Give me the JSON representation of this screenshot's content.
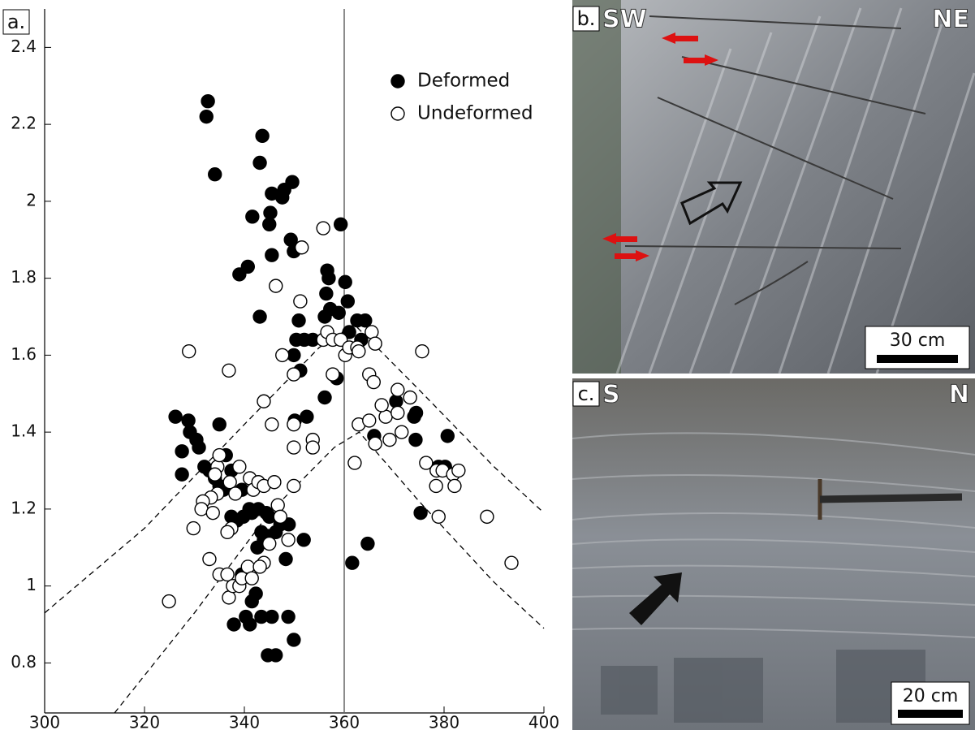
{
  "chart_data": {
    "type": "scatter",
    "panel_label": "a.",
    "xlim": [
      300,
      400
    ],
    "ylim": [
      0.67,
      2.5
    ],
    "xticks": [
      300,
      320,
      340,
      360,
      380,
      400
    ],
    "yticks": [
      0.8,
      1,
      1.2,
      1.4,
      1.6,
      1.8,
      2,
      2.2,
      2.4
    ],
    "reference_x": 360,
    "envelopes": [
      {
        "x": [
          300,
          320,
          340,
          355,
          362,
          375,
          390,
          400
        ],
        "y": [
          0.93,
          1.15,
          1.42,
          1.62,
          1.68,
          1.51,
          1.31,
          1.19
        ]
      },
      {
        "x": [
          314,
          330,
          345,
          358,
          363,
          375,
          390,
          400
        ],
        "y": [
          0.67,
          0.93,
          1.19,
          1.36,
          1.4,
          1.22,
          1.01,
          0.89
        ]
      }
    ],
    "series": [
      {
        "name": "Deformed",
        "color": "#000000",
        "filled": true,
        "x": [
          332.7,
          332.4,
          334.1,
          343.6,
          343.1,
          341.6,
          345.5,
          347.6,
          348.0,
          349.6,
          345.2,
          345.0,
          349.3,
          349.9,
          345.5,
          340.7,
          339.0,
          343.1,
          359.3,
          356.6,
          356.9,
          356.4,
          360.2,
          360.7,
          357.2,
          358.9,
          356.1,
          350.9,
          353.7,
          352.0,
          350.4,
          349.9,
          362.6,
          364.2,
          363.4,
          361.0,
          358.5,
          356.1,
          351.2,
          352.5,
          350.1,
          326.2,
          328.8,
          329.1,
          330.4,
          330.9,
          327.5,
          327.5,
          335.0,
          336.3,
          332.0,
          333.0,
          334.1,
          335.0,
          335.8,
          337.4,
          339.5,
          341.0,
          339.8,
          338.5,
          337.4,
          341.5,
          342.8,
          344.4,
          345.0,
          343.4,
          344.7,
          343.9,
          346.3,
          347.2,
          348.9,
          351.9,
          342.6,
          348.3,
          339.5,
          342.3,
          341.5,
          340.3,
          341.1,
          343.4,
          345.5,
          348.8,
          349.9,
          344.7,
          346.3,
          337.9,
          361.6,
          364.7,
          366.0,
          370.4,
          374.0,
          374.3,
          375.3,
          380.7,
          378.9,
          380.2,
          374.4
        ],
        "values": [
          2.26,
          2.22,
          2.07,
          2.17,
          2.1,
          1.96,
          2.02,
          2.01,
          2.03,
          2.05,
          1.97,
          1.94,
          1.9,
          1.87,
          1.86,
          1.83,
          1.81,
          1.7,
          1.94,
          1.82,
          1.8,
          1.76,
          1.79,
          1.74,
          1.72,
          1.71,
          1.7,
          1.69,
          1.64,
          1.64,
          1.64,
          1.6,
          1.69,
          1.69,
          1.64,
          1.66,
          1.54,
          1.49,
          1.56,
          1.44,
          1.43,
          1.44,
          1.43,
          1.4,
          1.38,
          1.36,
          1.35,
          1.29,
          1.42,
          1.34,
          1.31,
          1.3,
          1.28,
          1.26,
          1.25,
          1.3,
          1.25,
          1.2,
          1.18,
          1.17,
          1.18,
          1.19,
          1.2,
          1.19,
          1.18,
          1.14,
          1.13,
          1.12,
          1.14,
          1.16,
          1.16,
          1.12,
          1.1,
          1.07,
          1.03,
          0.98,
          0.96,
          0.92,
          0.9,
          0.92,
          0.92,
          0.92,
          0.86,
          0.82,
          0.82,
          0.9,
          1.06,
          1.11,
          1.39,
          1.48,
          1.44,
          1.38,
          1.19,
          1.39,
          1.31,
          1.31,
          1.45
        ]
      },
      {
        "name": "Undeformed",
        "color": "#000000",
        "filled": false,
        "x": [
          328.9,
          336.9,
          324.9,
          329.8,
          333.0,
          335.0,
          336.9,
          336.6,
          337.7,
          339.0,
          339.5,
          340.7,
          341.5,
          337.4,
          336.6,
          334.6,
          333.3,
          331.7,
          331.4,
          333.7,
          334.6,
          335.0,
          334.1,
          337.1,
          338.2,
          339.0,
          341.1,
          341.8,
          342.8,
          343.9,
          346.0,
          346.7,
          345.0,
          343.9,
          343.1,
          347.2,
          348.8,
          349.9,
          349.9,
          345.5,
          343.9,
          347.6,
          346.3,
          351.2,
          351.5,
          349.9,
          353.7,
          353.7,
          349.9,
          355.8,
          355.8,
          356.6,
          357.7,
          359.3,
          360.2,
          357.7,
          361.0,
          362.6,
          362.9,
          362.9,
          362.1,
          365.5,
          366.2,
          365.0,
          365.9,
          365.0,
          366.2,
          368.3,
          369.1,
          370.7,
          370.7,
          371.5,
          373.2,
          375.6,
          376.4,
          378.5,
          378.4,
          378.9,
          379.7,
          381.8,
          382.1,
          382.9,
          388.6,
          393.5,
          367.5
        ],
        "values": [
          1.61,
          1.56,
          0.96,
          1.15,
          1.07,
          1.03,
          0.97,
          1.03,
          1.0,
          1.0,
          1.02,
          1.05,
          1.02,
          1.15,
          1.14,
          1.24,
          1.23,
          1.22,
          1.2,
          1.19,
          1.31,
          1.34,
          1.29,
          1.27,
          1.24,
          1.31,
          1.28,
          1.25,
          1.27,
          1.26,
          1.27,
          1.21,
          1.11,
          1.06,
          1.05,
          1.18,
          1.12,
          1.26,
          1.42,
          1.42,
          1.48,
          1.6,
          1.78,
          1.74,
          1.88,
          1.55,
          1.38,
          1.36,
          1.36,
          1.93,
          1.64,
          1.66,
          1.64,
          1.64,
          1.6,
          1.55,
          1.62,
          1.62,
          1.61,
          1.42,
          1.32,
          1.66,
          1.63,
          1.55,
          1.53,
          1.43,
          1.37,
          1.44,
          1.38,
          1.51,
          1.45,
          1.4,
          1.49,
          1.61,
          1.32,
          1.3,
          1.26,
          1.18,
          1.3,
          1.29,
          1.26,
          1.3,
          1.18,
          1.06,
          1.47
        ]
      }
    ]
  },
  "photos": [
    {
      "label": "b.",
      "left": "SW",
      "right": "NE",
      "scale": "30 cm"
    },
    {
      "label": "c.",
      "left": "S",
      "right": "N",
      "scale": "20 cm"
    }
  ]
}
